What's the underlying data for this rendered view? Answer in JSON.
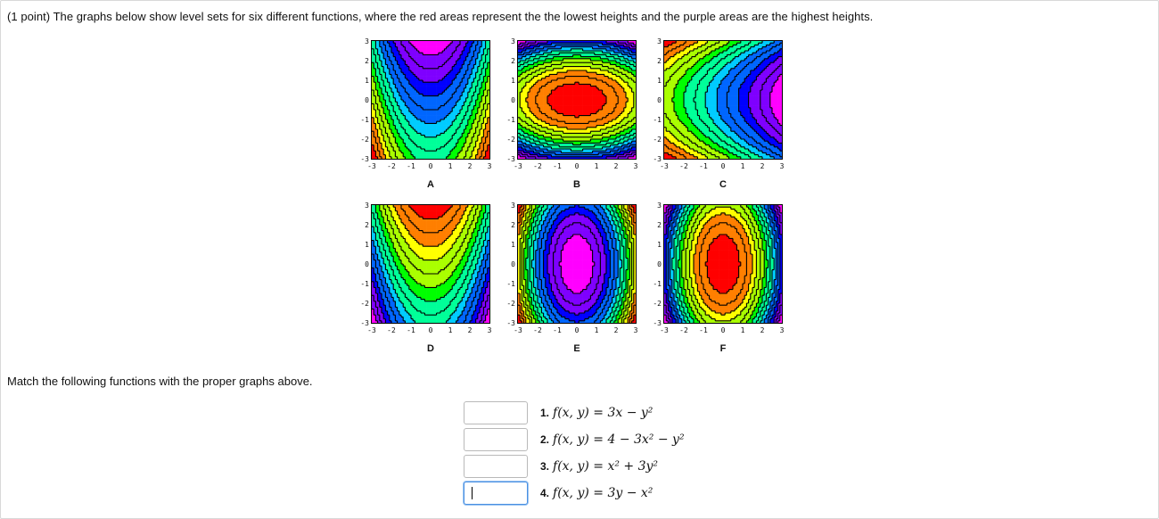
{
  "problem": {
    "prompt": "(1 point) The graphs below show level sets for six different functions, where the red areas represent the the lowest heights and the purple areas are the highest heights.",
    "match_prompt": "Match the following functions with the proper graphs above."
  },
  "graphs": [
    {
      "label": "A",
      "kind": "parab_down_vertex"
    },
    {
      "label": "B",
      "kind": "ellipse_center"
    },
    {
      "label": "C",
      "kind": "parab_right"
    },
    {
      "label": "D",
      "kind": "parab_up"
    },
    {
      "label": "E",
      "kind": "ellipse_tall_max"
    },
    {
      "label": "F",
      "kind": "ellipse_tall_min"
    }
  ],
  "axis_ticks": [
    "-3",
    "-2",
    "-1",
    "0",
    "1",
    "2",
    "3"
  ],
  "y_ticks": [
    "3",
    "2",
    "1",
    "0",
    "-1",
    "-2",
    "-3"
  ],
  "answers": [
    {
      "number": "1.",
      "formula": "f(x, y) = 3x − y²",
      "value": ""
    },
    {
      "number": "2.",
      "formula": "f(x, y) = 4 − 3x² − y²",
      "value": ""
    },
    {
      "number": "3.",
      "formula": "f(x, y) = x² + 3y²",
      "value": ""
    },
    {
      "number": "4.",
      "formula": "f(x, y) = 3y − x²",
      "value": ""
    }
  ],
  "palette": [
    "#ff0000",
    "#ff7f00",
    "#ffff00",
    "#aaff00",
    "#00ff00",
    "#00ff99",
    "#00ccff",
    "#0066ff",
    "#0000ff",
    "#7f00ff",
    "#ff00ff"
  ]
}
